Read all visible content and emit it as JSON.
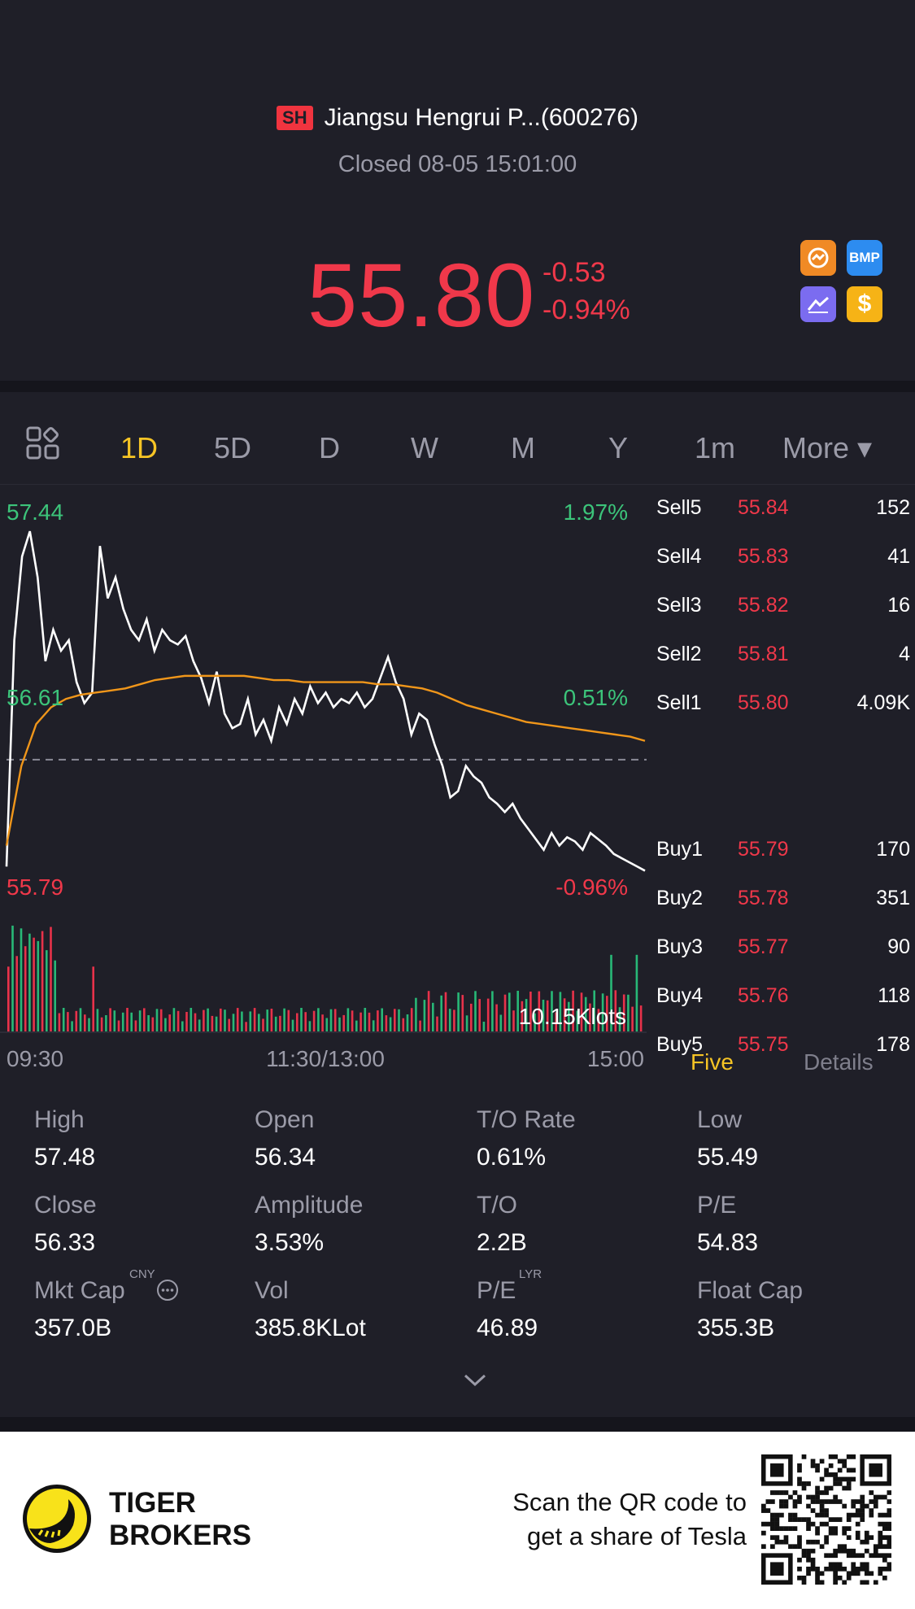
{
  "header": {
    "exchange": "SH",
    "title": "Jiangsu Hengrui P...(600276)",
    "status": "Closed 08-05 15:01:00",
    "price": "55.80",
    "change": "-0.53",
    "change_pct": "-0.94%",
    "icons": [
      "exchange-icon",
      "bmp-icon",
      "chart-trend-icon",
      "dollar-icon"
    ],
    "bmp_label": "BMP",
    "dollar_label": "$"
  },
  "tabs": [
    "1D",
    "5D",
    "D",
    "W",
    "M",
    "Y",
    "1m",
    "More ▾"
  ],
  "active_tab": "1D",
  "chart_data": {
    "type": "line",
    "title": "",
    "x_ticks": [
      "09:30",
      "11:30/13:00",
      "15:00"
    ],
    "y_left_labels": {
      "top": "57.44",
      "mid": "56.61",
      "bottom": "55.79"
    },
    "y_right_labels": {
      "top": "1.97%",
      "mid": "0.51%",
      "bottom": "-0.96%"
    },
    "reference_close": 56.33,
    "ylim": [
      55.79,
      57.44
    ],
    "volume_label": "10.15Klots",
    "series": [
      {
        "key": "price",
        "color": "#ffffff",
        "values": [
          55.82,
          56.9,
          57.3,
          57.42,
          57.2,
          56.8,
          56.95,
          56.85,
          56.9,
          56.7,
          56.6,
          56.65,
          57.35,
          57.1,
          57.2,
          57.05,
          56.95,
          56.9,
          57.0,
          56.85,
          56.95,
          56.9,
          56.88,
          56.92,
          56.8,
          56.72,
          56.6,
          56.75,
          56.55,
          56.48,
          56.5,
          56.62,
          56.45,
          56.52,
          56.42,
          56.58,
          56.5,
          56.62,
          56.55,
          56.68,
          56.6,
          56.65,
          56.58,
          56.62,
          56.6,
          56.65,
          56.58,
          56.62,
          56.72,
          56.82,
          56.7,
          56.62,
          56.45,
          56.55,
          56.52,
          56.4,
          56.3,
          56.15,
          56.18,
          56.3,
          56.25,
          56.22,
          56.15,
          56.12,
          56.08,
          56.12,
          56.05,
          56.0,
          55.95,
          55.9,
          55.98,
          55.92,
          55.96,
          55.94,
          55.9,
          55.98,
          55.95,
          55.92,
          55.88,
          55.86,
          55.84,
          55.82,
          55.8
        ]
      },
      {
        "key": "avg",
        "color": "#f0961a",
        "values": [
          55.92,
          56.3,
          56.5,
          56.58,
          56.62,
          56.64,
          56.65,
          56.66,
          56.67,
          56.69,
          56.71,
          56.72,
          56.73,
          56.73,
          56.73,
          56.73,
          56.73,
          56.72,
          56.71,
          56.71,
          56.7,
          56.7,
          56.7,
          56.7,
          56.7,
          56.69,
          56.69,
          56.68,
          56.67,
          56.65,
          56.62,
          56.59,
          56.57,
          56.55,
          56.53,
          56.51,
          56.5,
          56.49,
          56.48,
          56.47,
          56.46,
          56.45,
          56.44,
          56.42
        ]
      }
    ],
    "volume_series": {
      "up_color": "#28b877",
      "down_color": "#e8324a"
    },
    "grid": false
  },
  "orderbook": [
    {
      "label": "Sell5",
      "price": "55.84",
      "vol": "152"
    },
    {
      "label": "Sell4",
      "price": "55.83",
      "vol": "41"
    },
    {
      "label": "Sell3",
      "price": "55.82",
      "vol": "16"
    },
    {
      "label": "Sell2",
      "price": "55.81",
      "vol": "4"
    },
    {
      "label": "Sell1",
      "price": "55.80",
      "vol": "4.09K"
    },
    {
      "label": "Buy1",
      "price": "55.79",
      "vol": "170"
    },
    {
      "label": "Buy2",
      "price": "55.78",
      "vol": "351"
    },
    {
      "label": "Buy3",
      "price": "55.77",
      "vol": "90"
    },
    {
      "label": "Buy4",
      "price": "55.76",
      "vol": "118"
    },
    {
      "label": "Buy5",
      "price": "55.75",
      "vol": "178"
    }
  ],
  "orderbook_tabs": {
    "five": "Five",
    "details": "Details"
  },
  "stats": [
    {
      "label": "High",
      "value": "57.48"
    },
    {
      "label": "Open",
      "value": "56.34"
    },
    {
      "label": "T/O Rate",
      "value": "0.61%"
    },
    {
      "label": "Low",
      "value": "55.49"
    },
    {
      "label": "Close",
      "value": "56.33"
    },
    {
      "label": "Amplitude",
      "value": "3.53%"
    },
    {
      "label": "T/O",
      "value": "2.2B"
    },
    {
      "label": "P/E",
      "value": "54.83"
    },
    {
      "label": "Mkt Cap",
      "value": "357.0B",
      "sup": "CNY"
    },
    {
      "label": "Vol",
      "value": "385.8KLot"
    },
    {
      "label": "P/E",
      "value": "46.89",
      "sup": "LYR"
    },
    {
      "label": "Float Cap",
      "value": "355.3B"
    }
  ],
  "footer": {
    "brand_line1": "TIGER",
    "brand_line2": "BROKERS",
    "promo_line1": "Scan the QR code to",
    "promo_line2": "get a share of Tesla"
  },
  "colors": {
    "background": "#1f1f28",
    "down": "#f0384a",
    "up": "#3cc47a",
    "accent": "#f6c425"
  }
}
